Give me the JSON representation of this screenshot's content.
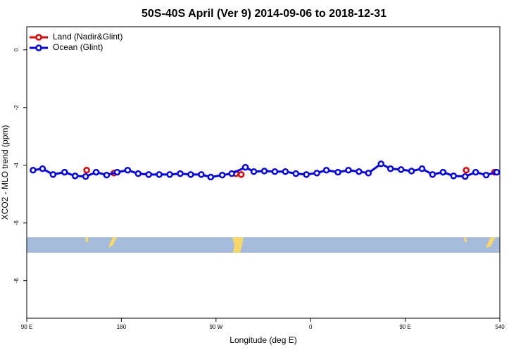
{
  "chart_data": {
    "type": "line",
    "title": "50S-40S April (Ver 9)   2014-09-06 to 2018-12-31",
    "xlabel": "Longitude (deg E)",
    "ylabel": "XCO2 - MLO trend (ppm)",
    "xlim": [
      90,
      540
    ],
    "ylim": [
      -9.3,
      0.8
    ],
    "xticks": [
      {
        "value": 90,
        "label": "90 E"
      },
      180,
      {
        "value": 270,
        "label": "90 W"
      },
      {
        "value": 360,
        "label": "0"
      },
      {
        "value": 450,
        "label": "90 E"
      },
      540
    ],
    "yticks": [
      0,
      -2,
      -4,
      -6,
      -8
    ],
    "legend": "top-left",
    "series": [
      {
        "name": "Land (Nadir&Glint)",
        "color": "#e00000",
        "line": false,
        "x": [
          147,
          173,
          289,
          294,
          508,
          535
        ],
        "values": [
          -4.17,
          -4.27,
          -4.29,
          -4.32,
          -4.17,
          -4.24
        ]
      },
      {
        "name": "Ocean (Glint)",
        "color": "#0000ee",
        "line": true,
        "x": [
          96,
          105,
          115,
          126,
          136,
          146,
          156,
          166,
          176,
          186,
          196,
          206,
          216,
          226,
          236,
          246,
          256,
          265,
          276,
          285,
          298,
          306,
          316,
          326,
          336,
          346,
          356,
          366,
          375,
          386,
          396,
          406,
          415,
          427,
          436,
          446,
          456,
          466,
          476,
          486,
          496,
          507,
          517,
          527,
          537
        ],
        "values": [
          -4.17,
          -4.12,
          -4.32,
          -4.24,
          -4.37,
          -4.39,
          -4.24,
          -4.34,
          -4.24,
          -4.17,
          -4.29,
          -4.32,
          -4.32,
          -4.32,
          -4.29,
          -4.32,
          -4.32,
          -4.41,
          -4.34,
          -4.29,
          -4.07,
          -4.22,
          -4.2,
          -4.22,
          -4.22,
          -4.29,
          -4.32,
          -4.27,
          -4.17,
          -4.24,
          -4.17,
          -4.22,
          -4.27,
          -3.95,
          -4.12,
          -4.15,
          -4.2,
          -4.12,
          -4.32,
          -4.24,
          -4.37,
          -4.39,
          -4.24,
          -4.34,
          -4.24
        ]
      }
    ]
  }
}
